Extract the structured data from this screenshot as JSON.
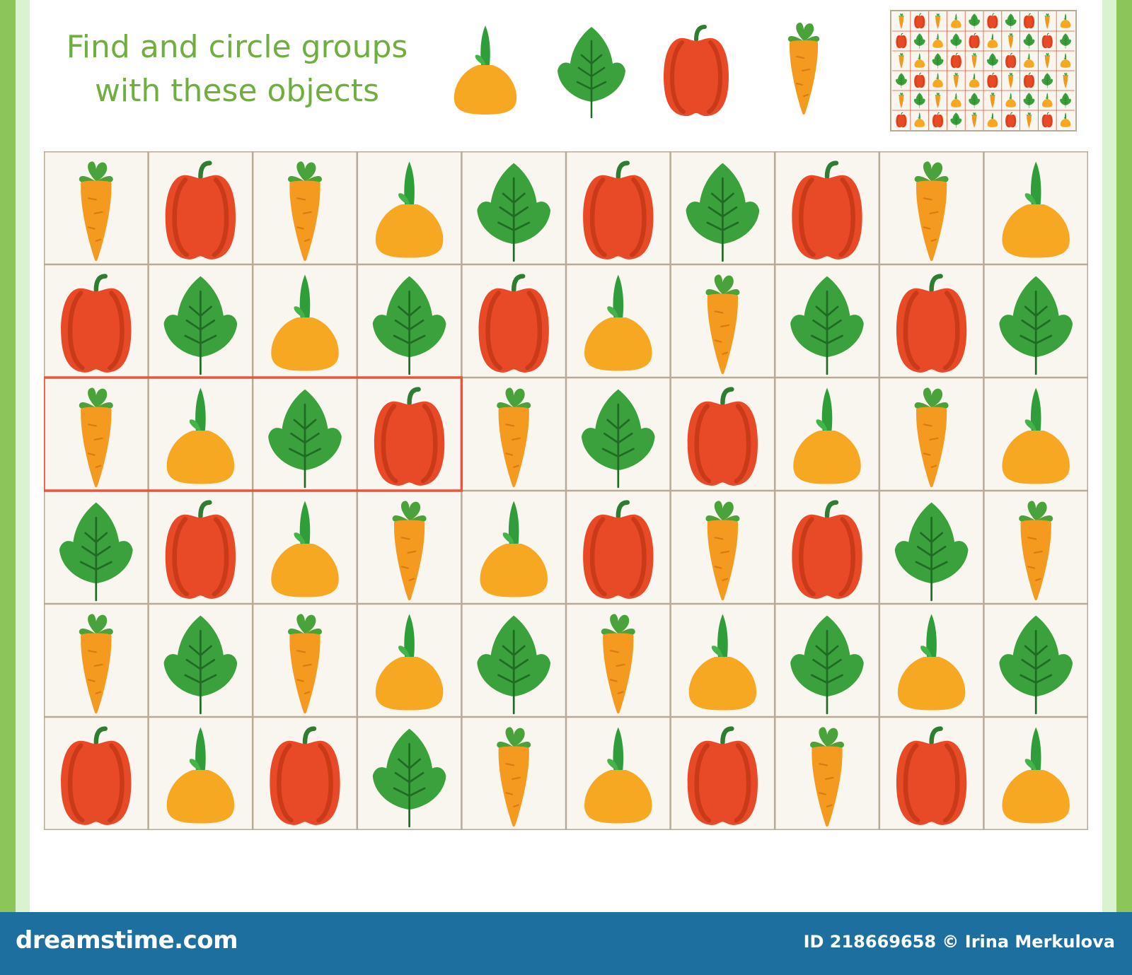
{
  "title": {
    "line1": "Find and circle groups",
    "line2": "with these objects"
  },
  "colors": {
    "title": "#6fae3f",
    "border_outer": "#8cc65a",
    "border_inner": "#d9f2cf",
    "cell_bg": "#f8f6ee",
    "grid_line": "#b8ab96",
    "highlight": "#e9553b",
    "footer": "#1d6fa0"
  },
  "targets": [
    "onion-icon",
    "leaf-icon",
    "pepper-icon",
    "carrot-icon"
  ],
  "grid": {
    "rows": [
      [
        "carrot",
        "pepper",
        "carrot",
        "onion",
        "leaf",
        "pepper",
        "leaf",
        "pepper",
        "carrot",
        "onion"
      ],
      [
        "pepper",
        "leaf",
        "onion",
        "leaf",
        "pepper",
        "onion",
        "carrot",
        "leaf",
        "pepper",
        "leaf"
      ],
      [
        "carrot",
        "onion",
        "leaf",
        "pepper",
        "carrot",
        "leaf",
        "pepper",
        "onion",
        "carrot",
        "onion"
      ],
      [
        "leaf",
        "pepper",
        "onion",
        "carrot",
        "onion",
        "pepper",
        "carrot",
        "pepper",
        "leaf",
        "carrot"
      ],
      [
        "carrot",
        "leaf",
        "carrot",
        "onion",
        "leaf",
        "carrot",
        "onion",
        "leaf",
        "onion",
        "leaf"
      ],
      [
        "pepper",
        "onion",
        "pepper",
        "leaf",
        "carrot",
        "onion",
        "pepper",
        "carrot",
        "pepper",
        "onion"
      ]
    ],
    "highlight": {
      "row": 2,
      "col_start": 0,
      "col_end": 3
    }
  },
  "footer": {
    "logo": "dreamstime.com",
    "credit": "ID 218669658 © Irina Merkulova"
  }
}
